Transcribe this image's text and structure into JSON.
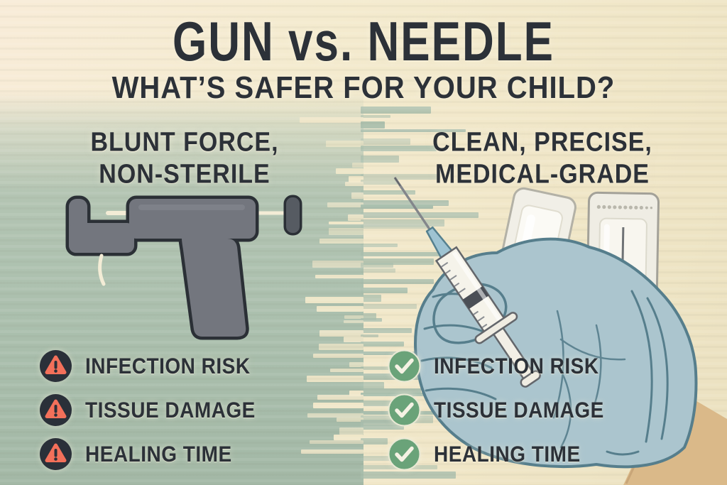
{
  "title": "GUN vs. NEEDLE",
  "subtitle": "WHAT’S SAFER FOR YOUR CHILD?",
  "left": {
    "heading": {
      "line1": "BLUNT FORCE,",
      "line2": "NON-STERILE"
    },
    "illustration": "ear-piercing-gun",
    "items": [
      {
        "icon": "warning-icon",
        "label": "INFECTION RISK"
      },
      {
        "icon": "warning-icon",
        "label": "TISSUE DAMAGE"
      },
      {
        "icon": "warning-icon",
        "label": "HEALING TIME"
      }
    ]
  },
  "right": {
    "heading": {
      "line1": "CLEAN, PRECISE,",
      "line2": "MEDICAL-GRADE"
    },
    "illustration": "gloved-hand-holding-syringe-with-sterile-needle-packaging",
    "items": [
      {
        "icon": "check-icon",
        "label": "INFECTION RISK"
      },
      {
        "icon": "check-icon",
        "label": "TISSUE DAMAGE"
      },
      {
        "icon": "check-icon",
        "label": "HEALING TIME"
      }
    ]
  },
  "colors": {
    "ink": "#2c3138",
    "warning_red": "#f3705a",
    "icon_circle_dark": "#2a3039",
    "check_green": "#6aa379",
    "left_bg_sage": "#a9bead",
    "right_bg_cream": "#f2e8ca",
    "gun_gray": "#73767e",
    "glove_blue": "#abc5ce",
    "skin_tan": "#dab989"
  }
}
